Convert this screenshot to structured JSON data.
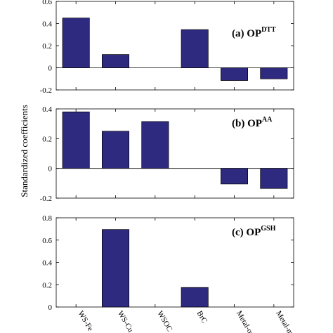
{
  "chart_data": {
    "type": "bar",
    "ylabel": "Standardized coefficients",
    "categories": [
      "WS-Fe",
      "WS-Cu",
      "WSOC",
      "BrC",
      "Metal-orga",
      "Metal-meta"
    ],
    "bar_color": "#2e2a80",
    "panels": [
      {
        "title_main": "(a) OP",
        "title_sup": "DTT",
        "values": [
          0.45,
          0.12,
          0.0,
          0.345,
          -0.115,
          -0.1
        ],
        "ylim": [
          -0.2,
          0.6
        ],
        "yticks": [
          -0.2,
          0,
          0.2,
          0.4,
          0.6
        ],
        "ytick_labels": [
          "-0.2",
          "0",
          "0.2",
          "0.4",
          "0.6"
        ]
      },
      {
        "title_main": "(b) OP",
        "title_sup": "AA",
        "values": [
          0.38,
          0.25,
          0.315,
          0.0,
          -0.105,
          -0.135
        ],
        "ylim": [
          -0.2,
          0.4
        ],
        "yticks": [
          -0.2,
          0,
          0.2,
          0.4
        ],
        "ytick_labels": [
          "-0.2",
          "0",
          "0.2",
          "0.4"
        ]
      },
      {
        "title_main": "(c) OP",
        "title_sup": "GSH",
        "values": [
          0.0,
          0.695,
          0.0,
          0.175,
          0.0,
          0.0
        ],
        "ylim": [
          0,
          0.8
        ],
        "yticks": [
          0,
          0.2,
          0.4,
          0.6,
          0.8
        ],
        "ytick_labels": [
          "0",
          "0.2",
          "0.4",
          "0.6",
          "0.8"
        ]
      }
    ],
    "grid": false,
    "legend": "none"
  }
}
